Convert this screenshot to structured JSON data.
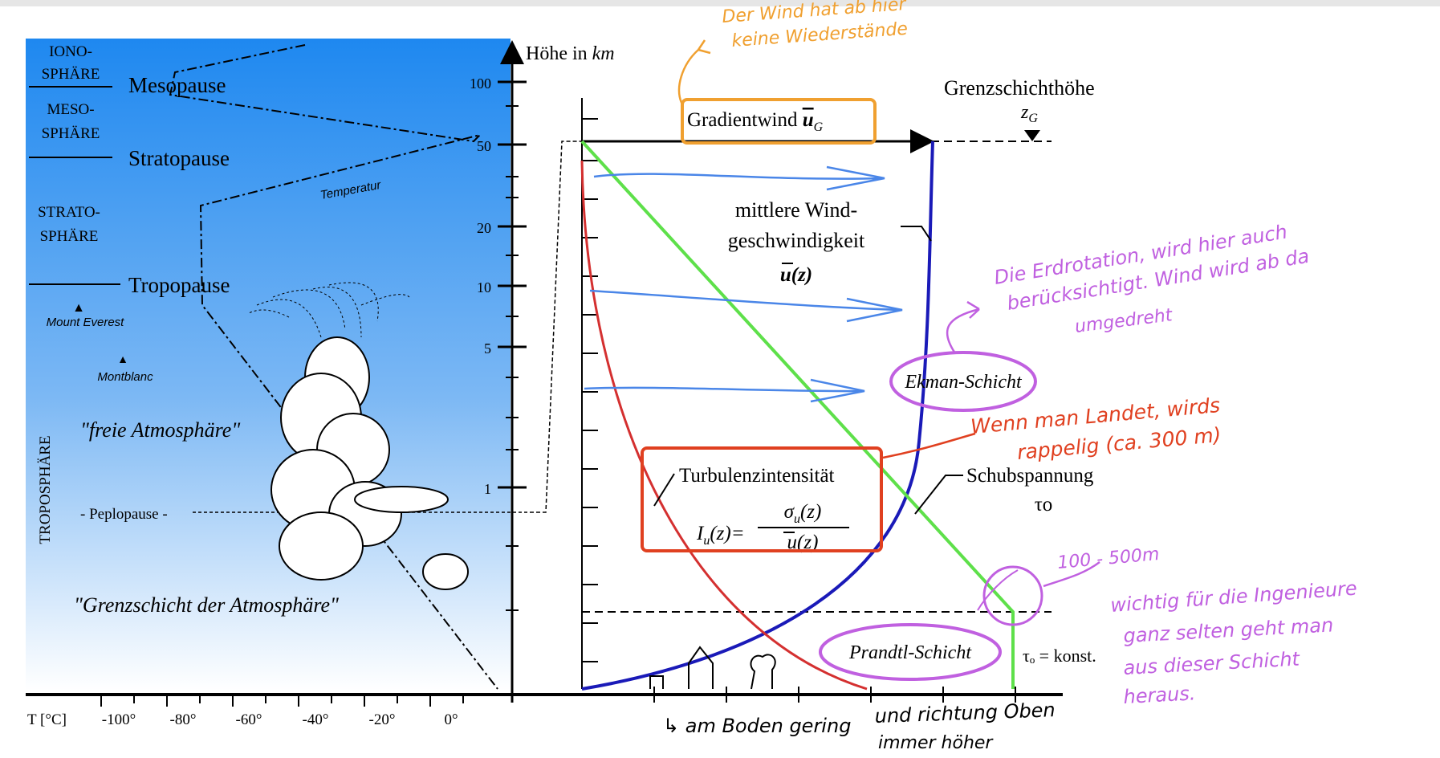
{
  "atmosphere": {
    "layers": {
      "ionosphere": [
        "IONO-",
        "SPHÄRE"
      ],
      "mesosphere": [
        "MESO-",
        "SPHÄRE"
      ],
      "stratosphere": [
        "STRATO-",
        "SPHÄRE"
      ],
      "troposphere": "TROPOSPHÄRE"
    },
    "pauses": {
      "mesopause": "Mesopause",
      "stratopause": "Stratopause",
      "tropopause": "Tropopause",
      "peplopause": "- Peplopause -"
    },
    "temperature_curve_label": "Temperatur",
    "mountains": {
      "everest": "Mount Everest",
      "montblanc": "Montblanc"
    },
    "regions": {
      "free_atmosphere": "\"freie Atmosphäre\"",
      "boundary_layer": "\"Grenzschicht der Atmosphäre\""
    },
    "colors": {
      "sky_top": "#1e88f0",
      "sky_bottom": "#ffffff"
    }
  },
  "height_axis": {
    "label_prefix": "Höhe in ",
    "label_unit": "km",
    "ticks": [
      "100",
      "50",
      "20",
      "10",
      "5",
      "1"
    ]
  },
  "temperature_axis": {
    "label": "T [°C]",
    "ticks": [
      "-100°",
      "-80°",
      "-60°",
      "-40°",
      "-20°",
      "0°"
    ]
  },
  "boundary_layer": {
    "height_label": "Grenzschichthöhe",
    "height_symbol": "z",
    "height_subscript": "G",
    "gradient_wind": {
      "text": "Gradientwind ",
      "symbol": "u",
      "subscript": "G"
    },
    "mean_wind": {
      "line1": "mittlere Wind-",
      "line2": "geschwindigkeit",
      "symbol": "u(z)"
    },
    "ekman_layer": "Ekman-Schicht",
    "prandtl_layer": "Prandtl-Schicht",
    "turbulence": {
      "title": "Turbulenzintensität",
      "lhs": "I",
      "lhs_sub": "u",
      "lhs_arg": "(z)=",
      "numerator": "σ",
      "numerator_sub": "u",
      "numerator_arg": "(z)",
      "denominator": "u(z)"
    },
    "shear_stress": {
      "title": "Schubspannung",
      "symbol": "τo",
      "const": "τₒ = konst."
    },
    "colors": {
      "wind_profile": "#1a1ab8",
      "turbulence_curve": "#d43030",
      "shear_line": "#5ee04a"
    }
  },
  "annotations": {
    "orange": {
      "line1": "Der Wind hat ab hier",
      "line2": "keine Wiederstände",
      "color": "#f0a030"
    },
    "purple_ekman": {
      "line1": "Die Erdrotation, wird hier auch",
      "line2": "berücksichtigt. Wind wird ab da",
      "line3": "umgedreht",
      "color": "#c060e0"
    },
    "red_note": {
      "line1": "Wenn man Landet, wirds",
      "line2": "rappelig (ca. 300 m)",
      "color": "#e04020"
    },
    "purple_range": {
      "text": "100 - 500m"
    },
    "purple_engineers": {
      "line1": "wichtig für die Ingenieure",
      "line2": "ganz selten geht man",
      "line3": "aus dieser Schicht",
      "line4": "heraus."
    },
    "black_bottom_left": "↳ am Boden gering",
    "black_bottom_right": {
      "line1": "und richtung Oben",
      "line2": "immer höher"
    },
    "arrow_color": "#4a86e8"
  }
}
